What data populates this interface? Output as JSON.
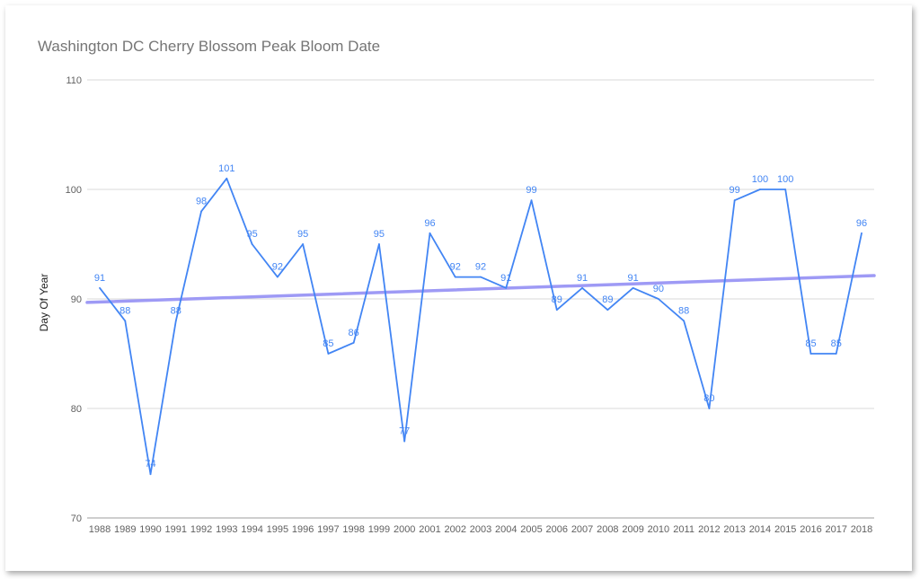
{
  "chart_data": {
    "type": "line",
    "title": "Washington DC Cherry Blossom Peak Bloom Date",
    "xlabel": "",
    "ylabel": "Day Of Year",
    "ylim": [
      70,
      110
    ],
    "yticks": [
      70,
      80,
      90,
      100,
      110
    ],
    "grid": true,
    "categories": [
      "1988",
      "1989",
      "1990",
      "1991",
      "1992",
      "1993",
      "1994",
      "1995",
      "1996",
      "1997",
      "1998",
      "1999",
      "2000",
      "2001",
      "2002",
      "2003",
      "2004",
      "2005",
      "2006",
      "2007",
      "2008",
      "2009",
      "2010",
      "2011",
      "2012",
      "2013",
      "2014",
      "2015",
      "2016",
      "2017",
      "2018"
    ],
    "series": [
      {
        "values": [
          91,
          88,
          74,
          88,
          98,
          101,
          95,
          92,
          95,
          85,
          86,
          95,
          77,
          96,
          92,
          92,
          91,
          99,
          89,
          91,
          89,
          91,
          90,
          88,
          80,
          99,
          100,
          100,
          85,
          85,
          96
        ],
        "color": "#4285f4",
        "data_labels": true
      }
    ],
    "trendline": {
      "type": "linear",
      "color": "#9e9af5"
    }
  }
}
